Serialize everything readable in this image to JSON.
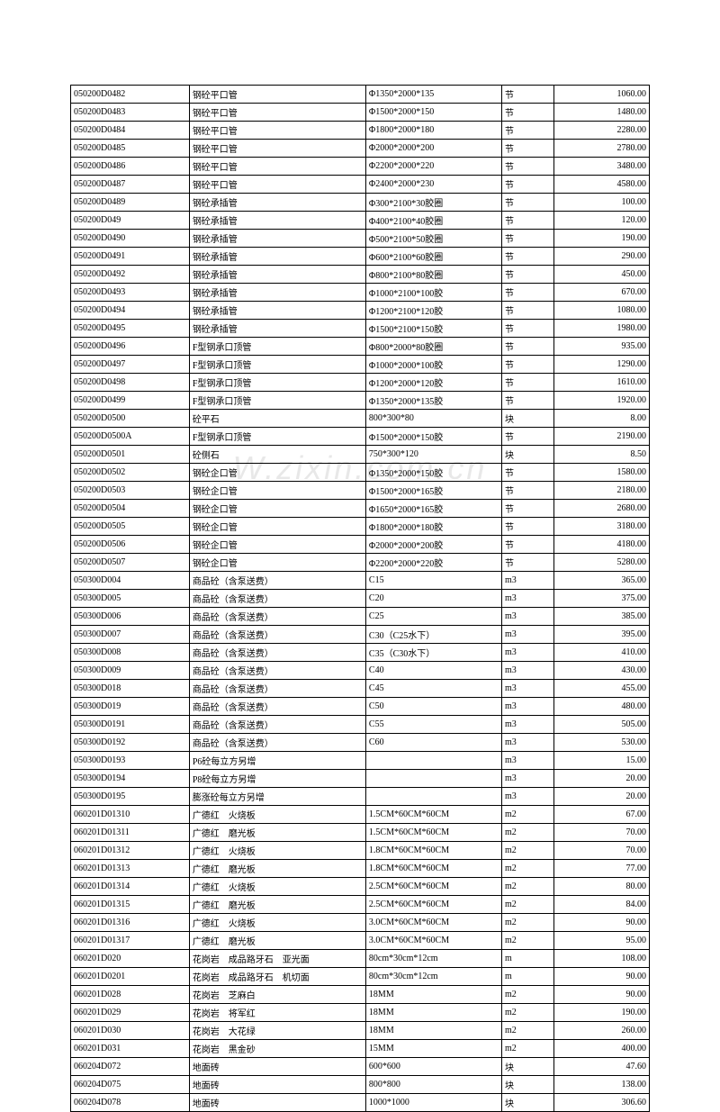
{
  "watermark_text": "W.zixin.com.cn",
  "table": {
    "columns": [
      "code",
      "name",
      "spec",
      "unit",
      "price"
    ],
    "column_alignments": [
      "left",
      "left",
      "left",
      "left",
      "right"
    ],
    "border_color": "#000000",
    "font_size": 10,
    "row_height": 16.5,
    "background_color": "#ffffff",
    "watermark_color": "#e8e8e8",
    "rows": [
      [
        "050200D0482",
        "钢砼平口管",
        "Φ1350*2000*135",
        "节",
        "1060.00"
      ],
      [
        "050200D0483",
        "钢砼平口管",
        "Φ1500*2000*150",
        "节",
        "1480.00"
      ],
      [
        "050200D0484",
        "钢砼平口管",
        "Φ1800*2000*180",
        "节",
        "2280.00"
      ],
      [
        "050200D0485",
        "钢砼平口管",
        "Φ2000*2000*200",
        "节",
        "2780.00"
      ],
      [
        "050200D0486",
        "钢砼平口管",
        "Φ2200*2000*220",
        "节",
        "3480.00"
      ],
      [
        "050200D0487",
        "钢砼平口管",
        "Φ2400*2000*230",
        "节",
        "4580.00"
      ],
      [
        "050200D0489",
        "钢砼承插管",
        "Φ300*2100*30胶圈",
        "节",
        "100.00"
      ],
      [
        "050200D049",
        "钢砼承插管",
        "Φ400*2100*40胶圈",
        "节",
        "120.00"
      ],
      [
        "050200D0490",
        "钢砼承插管",
        "Φ500*2100*50胶圈",
        "节",
        "190.00"
      ],
      [
        "050200D0491",
        "钢砼承插管",
        "Φ600*2100*60胶圈",
        "节",
        "290.00"
      ],
      [
        "050200D0492",
        "钢砼承插管",
        "Φ800*2100*80胶圈",
        "节",
        "450.00"
      ],
      [
        "050200D0493",
        "钢砼承插管",
        "Φ1000*2100*100胶",
        "节",
        "670.00"
      ],
      [
        "050200D0494",
        "钢砼承插管",
        "Φ1200*2100*120胶",
        "节",
        "1080.00"
      ],
      [
        "050200D0495",
        "钢砼承插管",
        "Φ1500*2100*150胶",
        "节",
        "1980.00"
      ],
      [
        "050200D0496",
        "F型钢承口顶管",
        "Φ800*2000*80胶圈",
        "节",
        "935.00"
      ],
      [
        "050200D0497",
        "F型钢承口顶管",
        "Φ1000*2000*100胶",
        "节",
        "1290.00"
      ],
      [
        "050200D0498",
        "F型钢承口顶管",
        "Φ1200*2000*120胶",
        "节",
        "1610.00"
      ],
      [
        "050200D0499",
        "F型钢承口顶管",
        "Φ1350*2000*135胶",
        "节",
        "1920.00"
      ],
      [
        "050200D0500",
        "砼平石",
        "800*300*80",
        "块",
        "8.00"
      ],
      [
        "050200D0500A",
        "F型钢承口顶管",
        "Φ1500*2000*150胶",
        "节",
        "2190.00"
      ],
      [
        "050200D0501",
        "砼侧石",
        "750*300*120",
        "块",
        "8.50"
      ],
      [
        "050200D0502",
        "钢砼企口管",
        "Φ1350*2000*150胶",
        "节",
        "1580.00"
      ],
      [
        "050200D0503",
        "钢砼企口管",
        "Φ1500*2000*165胶",
        "节",
        "2180.00"
      ],
      [
        "050200D0504",
        "钢砼企口管",
        "Φ1650*2000*165胶",
        "节",
        "2680.00"
      ],
      [
        "050200D0505",
        "钢砼企口管",
        "Φ1800*2000*180胶",
        "节",
        "3180.00"
      ],
      [
        "050200D0506",
        "钢砼企口管",
        "Φ2000*2000*200胶",
        "节",
        "4180.00"
      ],
      [
        "050200D0507",
        "钢砼企口管",
        "Φ2200*2000*220胶",
        "节",
        "5280.00"
      ],
      [
        "050300D004",
        "商品砼（含泵送费）",
        "C15",
        "m3",
        "365.00"
      ],
      [
        "050300D005",
        "商品砼（含泵送费）",
        "C20",
        "m3",
        "375.00"
      ],
      [
        "050300D006",
        "商品砼（含泵送费）",
        "C25",
        "m3",
        "385.00"
      ],
      [
        "050300D007",
        "商品砼（含泵送费）",
        "C30（C25水下）",
        "m3",
        "395.00"
      ],
      [
        "050300D008",
        "商品砼（含泵送费）",
        "C35（C30水下）",
        "m3",
        "410.00"
      ],
      [
        "050300D009",
        "商品砼（含泵送费）",
        "C40",
        "m3",
        "430.00"
      ],
      [
        "050300D018",
        "商品砼（含泵送费）",
        "C45",
        "m3",
        "455.00"
      ],
      [
        "050300D019",
        "商品砼（含泵送费）",
        "C50",
        "m3",
        "480.00"
      ],
      [
        "050300D0191",
        "商品砼（含泵送费）",
        "C55",
        "m3",
        "505.00"
      ],
      [
        "050300D0192",
        "商品砼（含泵送费）",
        "C60",
        "m3",
        "530.00"
      ],
      [
        "050300D0193",
        "P6砼每立方另增",
        "",
        "m3",
        "15.00"
      ],
      [
        "050300D0194",
        "P8砼每立方另增",
        "",
        "m3",
        "20.00"
      ],
      [
        "050300D0195",
        "膨涨砼每立方另增",
        "",
        "m3",
        "20.00"
      ],
      [
        "060201D01310",
        "广德红　火烧板",
        "1.5CM*60CM*60CM",
        "m2",
        "67.00"
      ],
      [
        "060201D01311",
        "广德红　磨光板",
        "1.5CM*60CM*60CM",
        "m2",
        "70.00"
      ],
      [
        "060201D01312",
        "广德红　火烧板",
        "1.8CM*60CM*60CM",
        "m2",
        "70.00"
      ],
      [
        "060201D01313",
        "广德红　磨光板",
        "1.8CM*60CM*60CM",
        "m2",
        "77.00"
      ],
      [
        "060201D01314",
        "广德红　火烧板",
        "2.5CM*60CM*60CM",
        "m2",
        "80.00"
      ],
      [
        "060201D01315",
        "广德红　磨光板",
        "2.5CM*60CM*60CM",
        "m2",
        "84.00"
      ],
      [
        "060201D01316",
        "广德红　火烧板",
        "3.0CM*60CM*60CM",
        "m2",
        "90.00"
      ],
      [
        "060201D01317",
        "广德红　磨光板",
        "3.0CM*60CM*60CM",
        "m2",
        "95.00"
      ],
      [
        "060201D020",
        "花岗岩　成品路牙石　亚光面",
        "80cm*30cm*12cm",
        "m",
        "108.00"
      ],
      [
        "060201D0201",
        "花岗岩　成品路牙石　机切面",
        "80cm*30cm*12cm",
        "m",
        "90.00"
      ],
      [
        "060201D028",
        "花岗岩　芝麻白",
        "18MM",
        "m2",
        "90.00"
      ],
      [
        "060201D029",
        "花岗岩　将军红",
        "18MM",
        "m2",
        "190.00"
      ],
      [
        "060201D030",
        "花岗岩　大花绿",
        "18MM",
        "m2",
        "260.00"
      ],
      [
        "060201D031",
        "花岗岩　黑金砂",
        "15MM",
        "m2",
        "400.00"
      ],
      [
        "060204D072",
        "地面砖",
        "600*600",
        "块",
        "47.60"
      ],
      [
        "060204D075",
        "地面砖",
        "800*800",
        "块",
        "138.00"
      ],
      [
        "060204D078",
        "地面砖",
        "1000*1000",
        "块",
        "306.60"
      ]
    ]
  }
}
